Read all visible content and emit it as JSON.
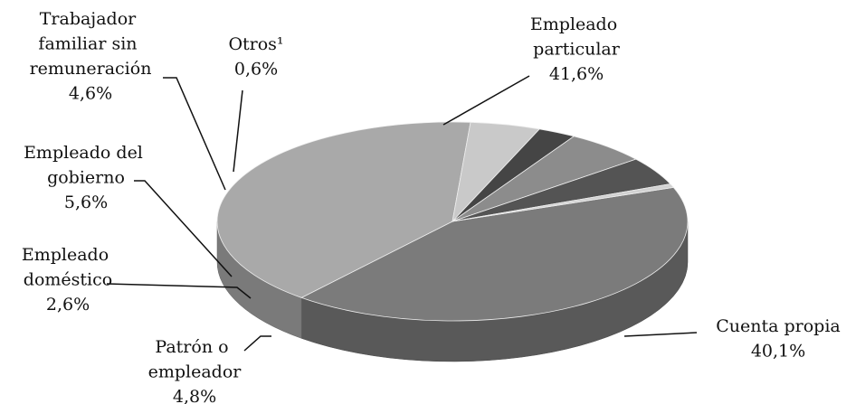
{
  "chart_data": {
    "type": "pie",
    "categories": [
      "Empleado particular",
      "Cuenta propia",
      "Patrón o empleador",
      "Empleado doméstico",
      "Empleado del gobierno",
      "Trabajador familiar sin remuneración",
      "Otros¹"
    ],
    "values": [
      41.6,
      40.1,
      4.8,
      2.6,
      5.6,
      4.6,
      0.6
    ],
    "value_labels": [
      "41,6%",
      "40,1%",
      "4,8%",
      "2,6%",
      "5,6%",
      "4,6%",
      "0,6%"
    ],
    "colors": [
      "#7b7b7b",
      "#a9a9a9",
      "#c9c9c9",
      "#454545",
      "#8c8c8c",
      "#545454",
      "#d2d2d2"
    ]
  }
}
